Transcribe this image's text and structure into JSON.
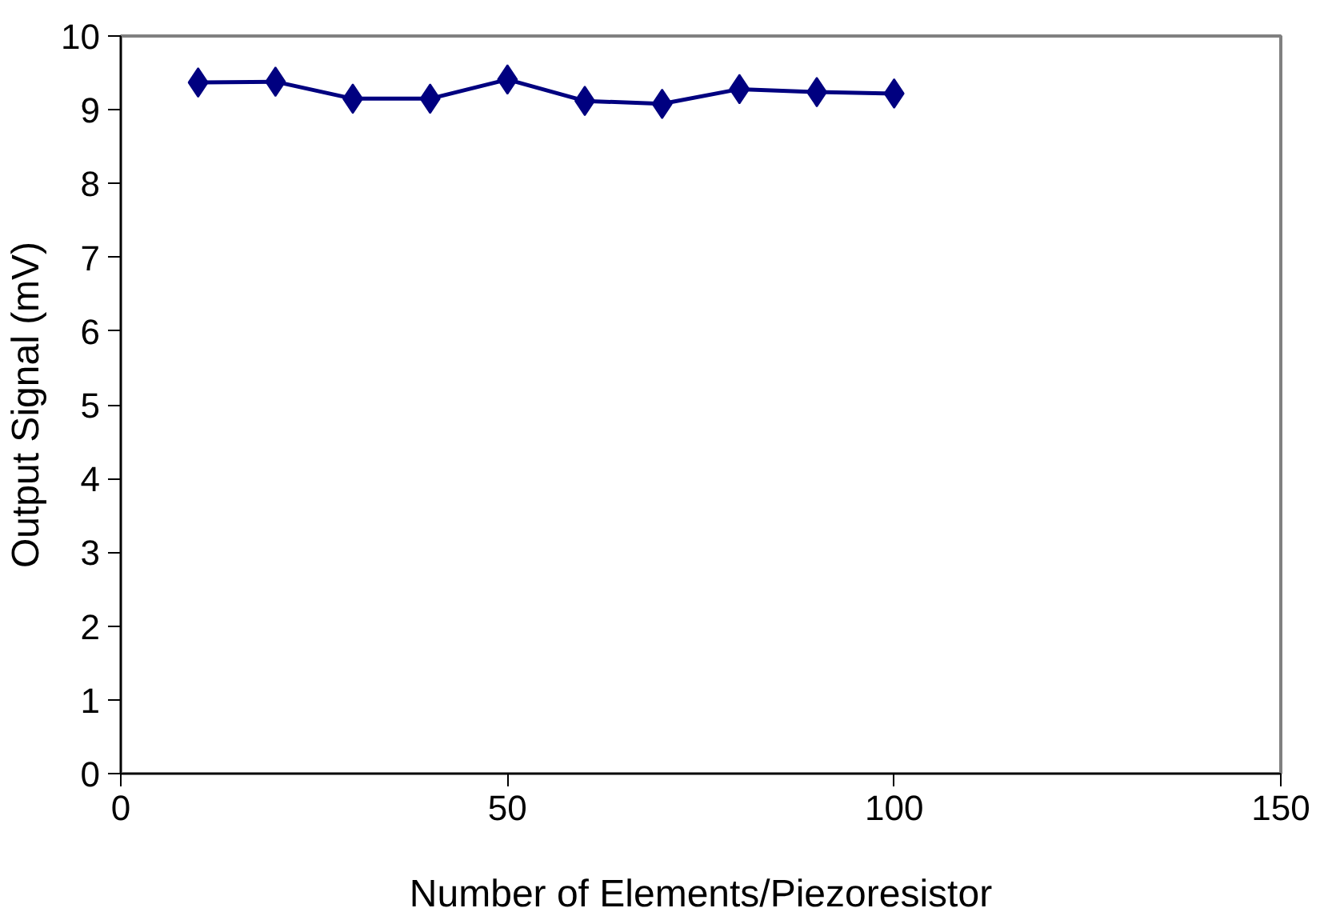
{
  "chart_data": {
    "type": "line",
    "xlabel": "Number of Elements/Piezoresistor",
    "ylabel": "Output Signal (mV)",
    "x": [
      10,
      20,
      30,
      40,
      50,
      60,
      70,
      80,
      90,
      100
    ],
    "series": [
      {
        "color": "#000080",
        "values": [
          9.37,
          9.38,
          9.15,
          9.15,
          9.41,
          9.12,
          9.08,
          9.28,
          9.24,
          9.22
        ]
      }
    ],
    "xlim": [
      0,
      150
    ],
    "xticks": [
      0,
      50,
      100,
      150
    ],
    "ylim": [
      0,
      10
    ],
    "yticks": [
      0,
      1,
      2,
      3,
      4,
      5,
      6,
      7,
      8,
      9,
      10
    ],
    "marker": "diamond",
    "line_style": "solid",
    "grid": false
  }
}
